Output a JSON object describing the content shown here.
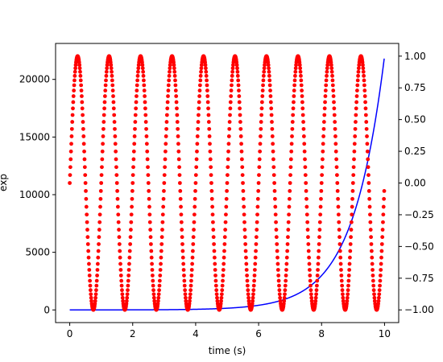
{
  "chart_data": {
    "type": "line",
    "title": "",
    "xlabel": "time (s)",
    "ylabel_left": "exp",
    "ylabel_right": "",
    "xlim": [
      -0.45,
      10.45
    ],
    "ylim_left": [
      -1098,
      23120
    ],
    "ylim_right": [
      -1.1,
      1.1
    ],
    "xticks": [
      0,
      2,
      4,
      6,
      8,
      10
    ],
    "xtick_labels": [
      "0",
      "2",
      "4",
      "6",
      "8",
      "10"
    ],
    "yticks_left": [
      0,
      5000,
      10000,
      15000,
      20000
    ],
    "ytick_labels_left": [
      "0",
      "5000",
      "10000",
      "15000",
      "20000"
    ],
    "yticks_right": [
      -1.0,
      -0.75,
      -0.5,
      -0.25,
      0.0,
      0.25,
      0.5,
      0.75,
      1.0
    ],
    "ytick_labels_right": [
      "−1.00",
      "−0.75",
      "−0.50",
      "−0.25",
      "0.00",
      "0.25",
      "0.50",
      "0.75",
      "1.00"
    ],
    "grid": false,
    "legend": "none",
    "series": [
      {
        "axis": "left",
        "style": "line",
        "color": "#0000ff",
        "function": "exp(t)",
        "x_range": [
          0,
          9.99
        ],
        "step": 0.01
      },
      {
        "axis": "right",
        "style": "markers",
        "color": "#ff0000",
        "function": "sin(2*pi*t)",
        "x_range": [
          0,
          9.99
        ],
        "step": 0.01
      }
    ]
  }
}
